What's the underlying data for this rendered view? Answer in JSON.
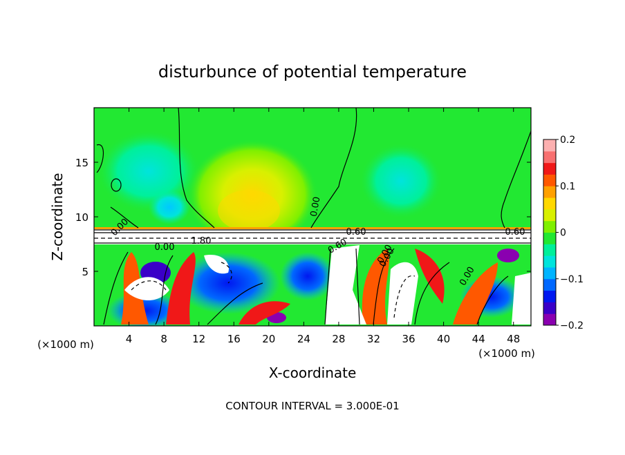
{
  "chart_data": {
    "type": "heatmap",
    "title": "disturbunce of potential temperature",
    "xlabel": "X-coordinate",
    "ylabel": "Z-coordinate",
    "x_unit": "(×1000 m)",
    "y_unit": "(×1000 m)",
    "xlim": [
      0,
      50
    ],
    "ylim": [
      0,
      20
    ],
    "x_ticks": [
      4,
      8,
      12,
      16,
      20,
      24,
      28,
      32,
      36,
      40,
      44,
      48
    ],
    "y_ticks": [
      5,
      10,
      15
    ],
    "colorbar": {
      "min": -0.2,
      "max": 0.2,
      "tick_values": [
        0.2,
        0.1,
        0,
        -0.1,
        -0.2
      ],
      "tick_labels": [
        "0.2",
        "0.1",
        "0",
        "−0.1",
        "−0.2"
      ],
      "colors": [
        "#8a00b0",
        "#3a00c8",
        "#0018f0",
        "#0068ff",
        "#00b4ff",
        "#00e4dc",
        "#00f09a",
        "#22e832",
        "#7ff000",
        "#d8f000",
        "#ffd800",
        "#ffa000",
        "#ff5800",
        "#f01818",
        "#f87070",
        "#fcb0b0"
      ]
    },
    "contour_interval": "CONTOUR INTERVAL = 3.000E-01",
    "contour_labels": [
      "0.00",
      "0.00",
      "0.00",
      "1.80",
      "0.60",
      "0.60",
      "0.60",
      "0.00",
      "0.00",
      "0.00"
    ],
    "regions": [
      {
        "desc": "upper layer near zero",
        "z_range": [
          9,
          20
        ],
        "value": 0.0
      },
      {
        "desc": "warm anomaly",
        "x_center": 18,
        "z_center": 10.5,
        "value": 0.06
      },
      {
        "desc": "cool anomaly",
        "x_center": 9,
        "z_center": 15,
        "value": -0.05
      },
      {
        "desc": "cool anomaly",
        "x_center": 34,
        "z_center": 14,
        "value": -0.04
      },
      {
        "desc": "inversion band",
        "z_range": [
          7.5,
          9
        ],
        "value": 0.2
      },
      {
        "desc": "turbulent lower layer",
        "z_range": [
          0,
          7.5
        ],
        "value_range": [
          -0.2,
          0.2
        ]
      }
    ]
  }
}
